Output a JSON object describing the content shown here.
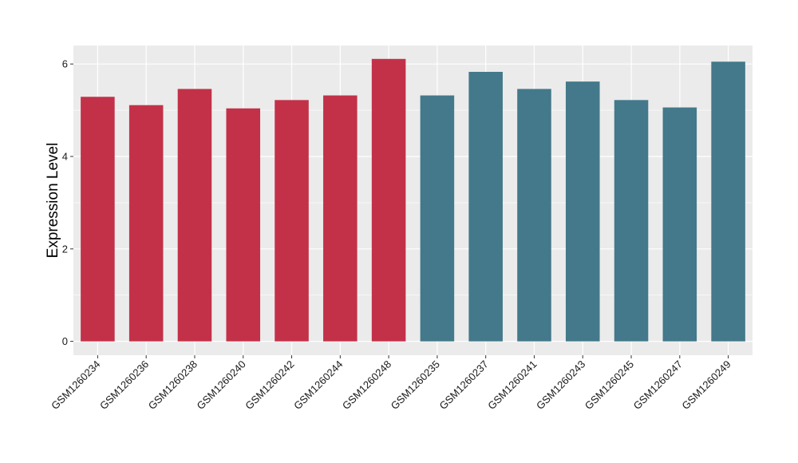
{
  "chart_data": {
    "type": "bar",
    "title": "",
    "xlabel": "",
    "ylabel": "Expression Level",
    "ylim": [
      -0.3,
      6.4
    ],
    "yticks": [
      0,
      2,
      4,
      6
    ],
    "grid": true,
    "legend": "none",
    "categories": [
      "GSM1260234",
      "GSM1260236",
      "GSM1260238",
      "GSM1260240",
      "GSM1260242",
      "GSM1260244",
      "GSM1260248",
      "GSM1260235",
      "GSM1260237",
      "GSM1260241",
      "GSM1260243",
      "GSM1260245",
      "GSM1260247",
      "GSM1260249"
    ],
    "values": [
      5.29,
      5.11,
      5.46,
      5.04,
      5.22,
      5.32,
      6.11,
      5.32,
      5.83,
      5.46,
      5.62,
      5.22,
      5.06,
      6.05
    ],
    "groups": [
      0,
      0,
      0,
      0,
      0,
      0,
      0,
      1,
      1,
      1,
      1,
      1,
      1,
      1
    ],
    "colors": {
      "group_a": "#C33149",
      "group_b": "#43798A",
      "panel": "#EBEBEB",
      "grid": "#FFFFFF"
    }
  }
}
